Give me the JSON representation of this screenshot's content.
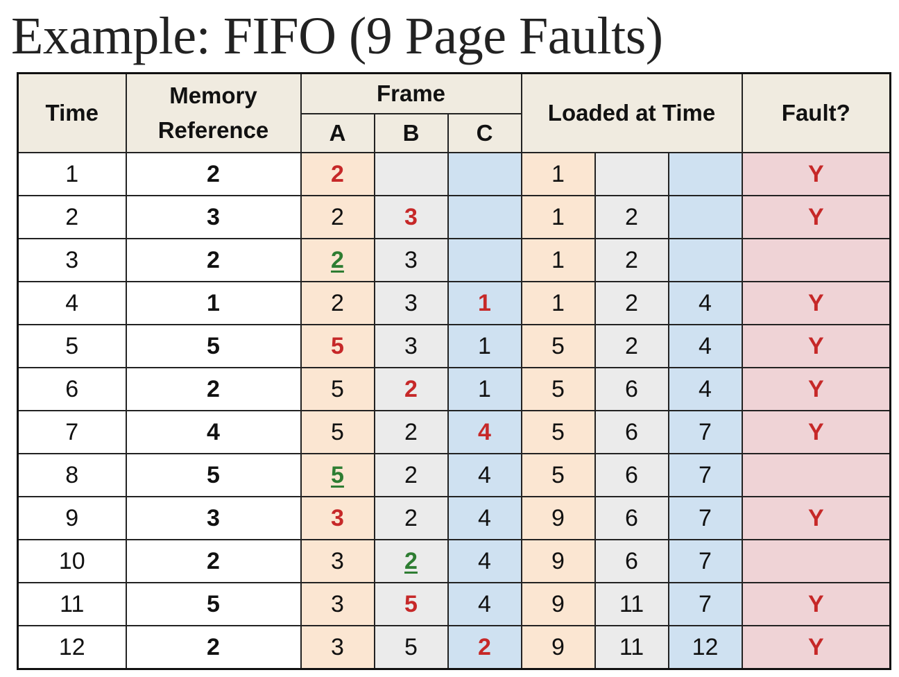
{
  "title": "Example: FIFO (9 Page Faults)",
  "headers": {
    "time": "Time",
    "memory_reference": "Memory Reference",
    "frame": "Frame",
    "frame_a": "A",
    "frame_b": "B",
    "frame_c": "C",
    "loaded_at_time": "Loaded at Time",
    "fault": "Fault?"
  },
  "colors": {
    "frame_a": "#fbe6d2",
    "frame_b": "#ebebeb",
    "frame_c": "#cfe1f1",
    "fault": "#efd3d6",
    "header": "#f0ebe0",
    "new_page": "#c62828",
    "hit_page": "#2e7d32"
  },
  "rows": [
    {
      "time": "1",
      "ref": "2",
      "frames": [
        {
          "v": "2",
          "s": "new"
        },
        {
          "v": "",
          "s": ""
        },
        {
          "v": "",
          "s": ""
        }
      ],
      "loaded": [
        "1",
        "",
        ""
      ],
      "fault": "Y"
    },
    {
      "time": "2",
      "ref": "3",
      "frames": [
        {
          "v": "2",
          "s": ""
        },
        {
          "v": "3",
          "s": "new"
        },
        {
          "v": "",
          "s": ""
        }
      ],
      "loaded": [
        "1",
        "2",
        ""
      ],
      "fault": "Y"
    },
    {
      "time": "3",
      "ref": "2",
      "frames": [
        {
          "v": "2",
          "s": "hit"
        },
        {
          "v": "3",
          "s": ""
        },
        {
          "v": "",
          "s": ""
        }
      ],
      "loaded": [
        "1",
        "2",
        ""
      ],
      "fault": ""
    },
    {
      "time": "4",
      "ref": "1",
      "frames": [
        {
          "v": "2",
          "s": ""
        },
        {
          "v": "3",
          "s": ""
        },
        {
          "v": "1",
          "s": "new"
        }
      ],
      "loaded": [
        "1",
        "2",
        "4"
      ],
      "fault": "Y"
    },
    {
      "time": "5",
      "ref": "5",
      "frames": [
        {
          "v": "5",
          "s": "new"
        },
        {
          "v": "3",
          "s": ""
        },
        {
          "v": "1",
          "s": ""
        }
      ],
      "loaded": [
        "5",
        "2",
        "4"
      ],
      "fault": "Y"
    },
    {
      "time": "6",
      "ref": "2",
      "frames": [
        {
          "v": "5",
          "s": ""
        },
        {
          "v": "2",
          "s": "new"
        },
        {
          "v": "1",
          "s": ""
        }
      ],
      "loaded": [
        "5",
        "6",
        "4"
      ],
      "fault": "Y"
    },
    {
      "time": "7",
      "ref": "4",
      "frames": [
        {
          "v": "5",
          "s": ""
        },
        {
          "v": "2",
          "s": ""
        },
        {
          "v": "4",
          "s": "new"
        }
      ],
      "loaded": [
        "5",
        "6",
        "7"
      ],
      "fault": "Y"
    },
    {
      "time": "8",
      "ref": "5",
      "frames": [
        {
          "v": "5",
          "s": "hit"
        },
        {
          "v": "2",
          "s": ""
        },
        {
          "v": "4",
          "s": ""
        }
      ],
      "loaded": [
        "5",
        "6",
        "7"
      ],
      "fault": ""
    },
    {
      "time": "9",
      "ref": "3",
      "frames": [
        {
          "v": "3",
          "s": "new"
        },
        {
          "v": "2",
          "s": ""
        },
        {
          "v": "4",
          "s": ""
        }
      ],
      "loaded": [
        "9",
        "6",
        "7"
      ],
      "fault": "Y"
    },
    {
      "time": "10",
      "ref": "2",
      "frames": [
        {
          "v": "3",
          "s": ""
        },
        {
          "v": "2",
          "s": "hit"
        },
        {
          "v": "4",
          "s": ""
        }
      ],
      "loaded": [
        "9",
        "6",
        "7"
      ],
      "fault": ""
    },
    {
      "time": "11",
      "ref": "5",
      "frames": [
        {
          "v": "3",
          "s": ""
        },
        {
          "v": "5",
          "s": "new"
        },
        {
          "v": "4",
          "s": ""
        }
      ],
      "loaded": [
        "9",
        "11",
        "7"
      ],
      "fault": "Y"
    },
    {
      "time": "12",
      "ref": "2",
      "frames": [
        {
          "v": "3",
          "s": ""
        },
        {
          "v": "5",
          "s": ""
        },
        {
          "v": "2",
          "s": "new"
        }
      ],
      "loaded": [
        "9",
        "11",
        "12"
      ],
      "fault": "Y"
    }
  ]
}
